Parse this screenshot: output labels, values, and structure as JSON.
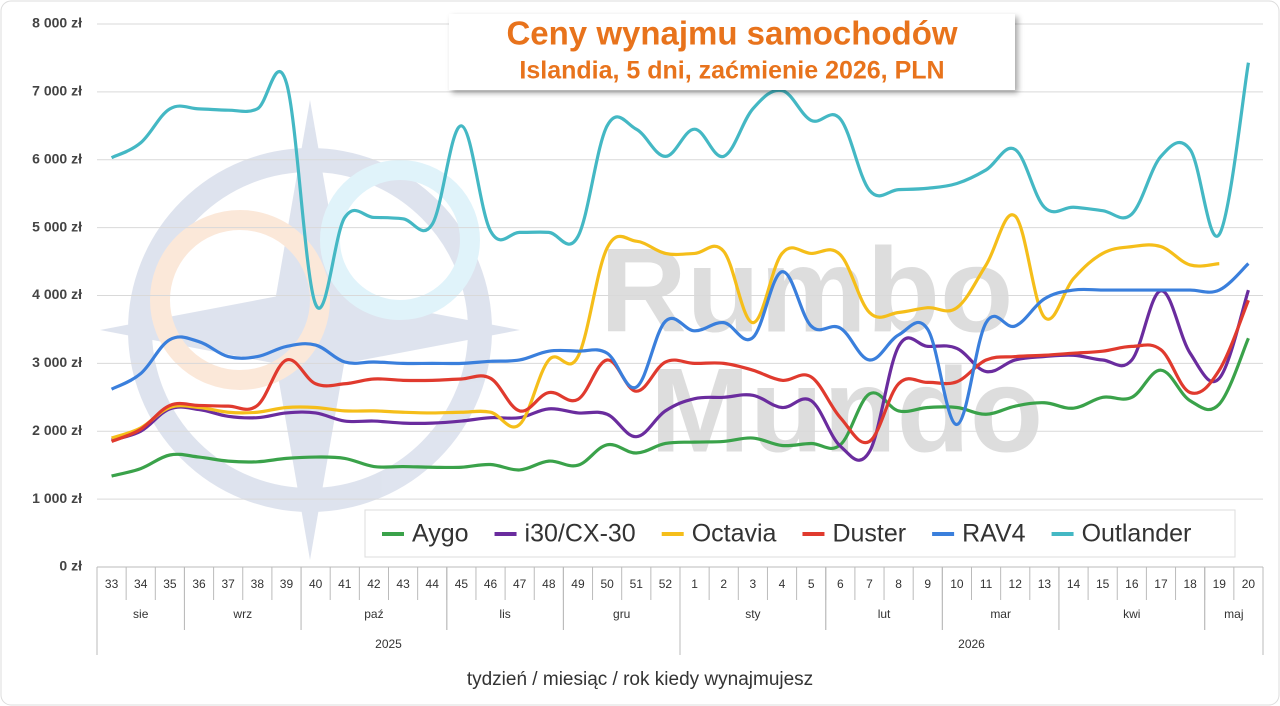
{
  "chart_data": {
    "type": "line",
    "title": "Ceny wynajmu samochodów",
    "subtitle": "Islandia, 5 dni, zaćmienie 2026, PLN",
    "x_label": "tydzień / miesiąc / rok kiedy wynajmujesz",
    "watermark": [
      "Rumbo",
      "Mundo"
    ],
    "categories": [
      "33",
      "34",
      "35",
      "36",
      "37",
      "38",
      "39",
      "40",
      "41",
      "42",
      "43",
      "44",
      "45",
      "46",
      "47",
      "48",
      "49",
      "50",
      "51",
      "52",
      "1",
      "2",
      "3",
      "4",
      "5",
      "6",
      "7",
      "8",
      "9",
      "10",
      "11",
      "12",
      "13",
      "14",
      "15",
      "16",
      "17",
      "18",
      "19",
      "20"
    ],
    "months": [
      {
        "label": "sie",
        "weeks": 3
      },
      {
        "label": "wrz",
        "weeks": 4
      },
      {
        "label": "paź",
        "weeks": 5
      },
      {
        "label": "lis",
        "weeks": 4
      },
      {
        "label": "gru",
        "weeks": 4
      },
      {
        "label": "sty",
        "weeks": 5
      },
      {
        "label": "lut",
        "weeks": 4
      },
      {
        "label": "mar",
        "weeks": 4
      },
      {
        "label": "kwi",
        "weeks": 5
      },
      {
        "label": "maj",
        "weeks": 2
      }
    ],
    "years": [
      {
        "label": "2025",
        "weeks": 20
      },
      {
        "label": "2026",
        "weeks": 20
      }
    ],
    "ylim": [
      0,
      8000
    ],
    "yticks": [
      {
        "value": 0,
        "label": "0 zł"
      },
      {
        "value": 1000,
        "label": "1 000 zł"
      },
      {
        "value": 2000,
        "label": "2 000 zł"
      },
      {
        "value": 3000,
        "label": "3 000 zł"
      },
      {
        "value": 4000,
        "label": "4 000 zł"
      },
      {
        "value": 5000,
        "label": "5 000 zł"
      },
      {
        "value": 6000,
        "label": "6 000 zł"
      },
      {
        "value": 7000,
        "label": "7 000 zł"
      },
      {
        "value": 8000,
        "label": "8 000 zł"
      }
    ],
    "grid": true,
    "legend": "bottom",
    "series": [
      {
        "name": "Aygo",
        "color": "#3aa24a",
        "values": [
          1340,
          1450,
          1650,
          1620,
          1560,
          1550,
          1600,
          1620,
          1600,
          1480,
          1480,
          1470,
          1470,
          1510,
          1430,
          1560,
          1500,
          1800,
          1680,
          1820,
          1840,
          1850,
          1900,
          1790,
          1820,
          1800,
          2550,
          2300,
          2350,
          2350,
          2250,
          2370,
          2420,
          2340,
          2500,
          2500,
          2900,
          2450,
          2400,
          3370
        ]
      },
      {
        "name": "i30/CX-30",
        "color": "#6a2c9e",
        "values": [
          1870,
          2000,
          2330,
          2320,
          2220,
          2200,
          2270,
          2270,
          2150,
          2150,
          2120,
          2120,
          2150,
          2200,
          2200,
          2330,
          2270,
          2250,
          1920,
          2300,
          2480,
          2500,
          2530,
          2350,
          2450,
          1780,
          1700,
          3250,
          3250,
          3220,
          2880,
          3050,
          3100,
          3120,
          3050,
          3050,
          4070,
          3150,
          2780,
          4080
        ]
      },
      {
        "name": "Octavia",
        "color": "#f5be1a",
        "values": [
          1900,
          2050,
          2350,
          2350,
          2280,
          2280,
          2350,
          2350,
          2300,
          2300,
          2280,
          2270,
          2280,
          2280,
          2100,
          3050,
          3100,
          4700,
          4800,
          4620,
          4620,
          4650,
          3600,
          4620,
          4620,
          4600,
          3750,
          3750,
          3820,
          3820,
          4450,
          5170,
          3680,
          4250,
          4620,
          4720,
          4720,
          4450,
          4470,
          null
        ]
      },
      {
        "name": "Duster",
        "color": "#e03a2e",
        "values": [
          1850,
          2030,
          2380,
          2380,
          2370,
          2380,
          3050,
          2700,
          2700,
          2770,
          2750,
          2750,
          2770,
          2780,
          2300,
          2570,
          2470,
          3050,
          2590,
          3020,
          3000,
          3000,
          2900,
          2750,
          2800,
          2200,
          1850,
          2700,
          2720,
          2730,
          3050,
          3100,
          3120,
          3150,
          3180,
          3250,
          3200,
          2570,
          2900,
          3930
        ]
      },
      {
        "name": "RAV4",
        "color": "#3a7fdc",
        "values": [
          2620,
          2850,
          3350,
          3320,
          3100,
          3100,
          3250,
          3270,
          3020,
          3020,
          3000,
          3000,
          3000,
          3030,
          3050,
          3180,
          3180,
          3150,
          2650,
          3620,
          3480,
          3600,
          3380,
          4350,
          3550,
          3520,
          3050,
          3420,
          3500,
          2100,
          3600,
          3550,
          3950,
          4080,
          4080,
          4080,
          4080,
          4080,
          4080,
          4470
        ]
      },
      {
        "name": "Outlander",
        "color": "#44b8c4",
        "values": [
          6030,
          6250,
          6750,
          6750,
          6730,
          6750,
          7130,
          3870,
          5150,
          5150,
          5130,
          5050,
          6500,
          4950,
          4930,
          4930,
          4870,
          6500,
          6450,
          6050,
          6450,
          6050,
          6750,
          7020,
          6580,
          6600,
          5550,
          5560,
          5580,
          5650,
          5850,
          6150,
          5300,
          5300,
          5250,
          5200,
          6050,
          6150,
          4900,
          7430
        ]
      }
    ]
  }
}
